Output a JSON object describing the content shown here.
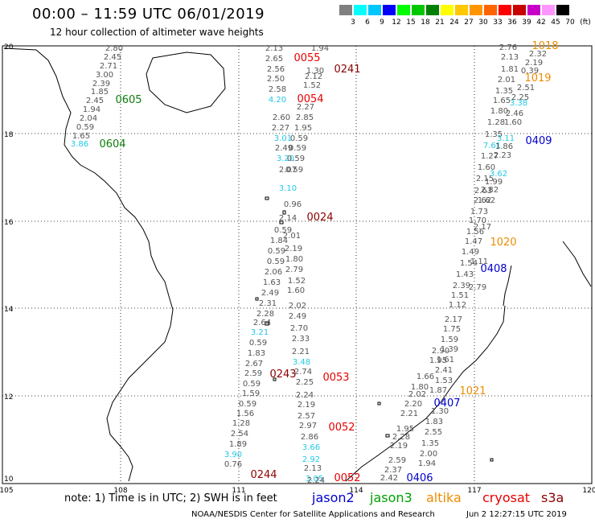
{
  "header": {
    "title": "00:00 – 11:59 UTC 06/01/2019",
    "subtitle": "12 hour collection of altimeter wave heights"
  },
  "scale": {
    "labels": [
      "3",
      "6",
      "9",
      "12",
      "15",
      "18",
      "21",
      "24",
      "27",
      "30",
      "33",
      "36",
      "39",
      "42",
      "45",
      "70",
      "(ft)"
    ],
    "colors": [
      "#808080",
      "#00ffff",
      "#00c8ff",
      "#0000ff",
      "#00ff00",
      "#00c800",
      "#008000",
      "#ffff00",
      "#ffc800",
      "#ff9600",
      "#ff6400",
      "#ff0000",
      "#c80000",
      "#c800c8",
      "#ff96ff",
      "#000000"
    ]
  },
  "axes": {
    "lon": [
      "105",
      "108",
      "111",
      "114",
      "117",
      "120"
    ],
    "lat": [
      "20",
      "18",
      "16",
      "14",
      "12",
      "10"
    ]
  },
  "colors": {
    "gray": "#555555",
    "cyan": "#22c8e6",
    "green": "#0b7d0b",
    "red": "#e60000",
    "darkred": "#8b0000",
    "blue": "#0000cd",
    "orange": "#ee8c00"
  },
  "passes": [
    {
      "color": "darkred",
      "text": "0241"
    },
    {
      "color": "red",
      "text": "0055"
    },
    {
      "color": "red",
      "text": "0054"
    },
    {
      "color": "green",
      "text": "0605"
    },
    {
      "color": "green",
      "text": "0604"
    },
    {
      "color": "darkred",
      "text": "0024"
    },
    {
      "color": "red",
      "text": "0053"
    },
    {
      "color": "darkred",
      "text": "0243"
    },
    {
      "color": "red",
      "text": "0052"
    },
    {
      "color": "darkred",
      "text": "0244"
    },
    {
      "color": "red",
      "text": "0052"
    },
    {
      "color": "blue",
      "text": "0406"
    },
    {
      "color": "blue",
      "text": "0407"
    },
    {
      "color": "orange",
      "text": "1021"
    },
    {
      "color": "blue",
      "text": "0408"
    },
    {
      "color": "orange",
      "text": "1020"
    },
    {
      "color": "blue",
      "text": "0409"
    },
    {
      "color": "orange",
      "text": "1019"
    },
    {
      "color": "orange",
      "text": "1018"
    }
  ],
  "track_values": [
    {
      "color": "gray",
      "text": "2.80"
    },
    {
      "color": "gray",
      "text": "2.45"
    },
    {
      "color": "gray",
      "text": "2.71"
    },
    {
      "color": "gray",
      "text": "3.00"
    },
    {
      "color": "gray",
      "text": "2.39"
    },
    {
      "color": "gray",
      "text": "1.85"
    },
    {
      "color": "gray",
      "text": "2.45"
    },
    {
      "color": "gray",
      "text": "1.94"
    },
    {
      "color": "gray",
      "text": "2.04"
    },
    {
      "color": "gray",
      "text": "0.59"
    },
    {
      "color": "gray",
      "text": "1.65"
    },
    {
      "color": "cyan",
      "text": "3.86"
    },
    {
      "color": "gray",
      "text": "2.13"
    },
    {
      "color": "gray",
      "text": "2.65"
    },
    {
      "color": "gray",
      "text": "2.56"
    },
    {
      "color": "gray",
      "text": "2.50"
    },
    {
      "color": "gray",
      "text": "2.58"
    },
    {
      "color": "cyan",
      "text": "4.20"
    },
    {
      "color": "gray",
      "text": "1.94"
    },
    {
      "color": "gray",
      "text": "1.30"
    },
    {
      "color": "gray",
      "text": "2.12"
    },
    {
      "color": "gray",
      "text": "1.52"
    },
    {
      "color": "gray",
      "text": "2.27"
    },
    {
      "color": "gray",
      "text": "2.60"
    },
    {
      "color": "gray",
      "text": "2.85"
    },
    {
      "color": "gray",
      "text": "2.27"
    },
    {
      "color": "gray",
      "text": "1.95"
    },
    {
      "color": "cyan",
      "text": "3.01"
    },
    {
      "color": "gray",
      "text": "0.59"
    },
    {
      "color": "gray",
      "text": "2.49"
    },
    {
      "color": "gray",
      "text": "0.59"
    },
    {
      "color": "cyan",
      "text": "3.20"
    },
    {
      "color": "gray",
      "text": "0.59"
    },
    {
      "color": "gray",
      "text": "2.07"
    },
    {
      "color": "gray",
      "text": "0.59"
    },
    {
      "color": "cyan",
      "text": "3.10"
    },
    {
      "color": "gray",
      "text": "0.96"
    },
    {
      "color": "gray",
      "text": "2.14"
    },
    {
      "color": "gray",
      "text": "0.59"
    },
    {
      "color": "gray",
      "text": "2.01"
    },
    {
      "color": "gray",
      "text": "1.84"
    },
    {
      "color": "gray",
      "text": "2.19"
    },
    {
      "color": "gray",
      "text": "0.59"
    },
    {
      "color": "gray",
      "text": "1.80"
    },
    {
      "color": "gray",
      "text": "0.59"
    },
    {
      "color": "gray",
      "text": "2.79"
    },
    {
      "color": "gray",
      "text": "2.06"
    },
    {
      "color": "gray",
      "text": "1.52"
    },
    {
      "color": "gray",
      "text": "1.63"
    },
    {
      "color": "gray",
      "text": "1.60"
    },
    {
      "color": "gray",
      "text": "2.49"
    },
    {
      "color": "gray",
      "text": "2.02"
    },
    {
      "color": "gray",
      "text": "2.31"
    },
    {
      "color": "gray",
      "text": "2.49"
    },
    {
      "color": "gray",
      "text": "2.28"
    },
    {
      "color": "gray",
      "text": "2.70"
    },
    {
      "color": "gray",
      "text": "2.64"
    },
    {
      "color": "gray",
      "text": "2.33"
    },
    {
      "color": "cyan",
      "text": "3.21"
    },
    {
      "color": "gray",
      "text": "2.21"
    },
    {
      "color": "gray",
      "text": "0.59"
    },
    {
      "color": "cyan",
      "text": "3.48"
    },
    {
      "color": "gray",
      "text": "1.83"
    },
    {
      "color": "gray",
      "text": "2.74"
    },
    {
      "color": "gray",
      "text": "2.67"
    },
    {
      "color": "gray",
      "text": "2.25"
    },
    {
      "color": "gray",
      "text": "2.59"
    },
    {
      "color": "gray",
      "text": "2.24"
    },
    {
      "color": "gray",
      "text": "0.59"
    },
    {
      "color": "gray",
      "text": "2.19"
    },
    {
      "color": "gray",
      "text": "1.59"
    },
    {
      "color": "gray",
      "text": "2.57"
    },
    {
      "color": "gray",
      "text": "0.59"
    },
    {
      "color": "gray",
      "text": "2.97"
    },
    {
      "color": "gray",
      "text": "1.56"
    },
    {
      "color": "gray",
      "text": "2.86"
    },
    {
      "color": "gray",
      "text": "1.28"
    },
    {
      "color": "cyan",
      "text": "3.66"
    },
    {
      "color": "gray",
      "text": "2.54"
    },
    {
      "color": "cyan",
      "text": "2.92"
    },
    {
      "color": "gray",
      "text": "1.89"
    },
    {
      "color": "gray",
      "text": "2.13"
    },
    {
      "color": "cyan",
      "text": "3.90"
    },
    {
      "color": "cyan",
      "text": "3.05"
    },
    {
      "color": "gray",
      "text": "0.76"
    },
    {
      "color": "gray",
      "text": "2.24"
    },
    {
      "color": "gray",
      "text": "2.76"
    },
    {
      "color": "gray",
      "text": "2.13"
    },
    {
      "color": "gray",
      "text": "1.81"
    },
    {
      "color": "gray",
      "text": "2.01"
    },
    {
      "color": "gray",
      "text": "1.35"
    },
    {
      "color": "gray",
      "text": "1.65"
    },
    {
      "color": "gray",
      "text": "1.80"
    },
    {
      "color": "gray",
      "text": "1.28"
    },
    {
      "color": "gray",
      "text": "1.35"
    },
    {
      "color": "cyan",
      "text": "7.61"
    },
    {
      "color": "gray",
      "text": "1.27"
    },
    {
      "color": "gray",
      "text": "1.60"
    },
    {
      "color": "gray",
      "text": "2.15"
    },
    {
      "color": "gray",
      "text": "2.63"
    },
    {
      "color": "gray",
      "text": "2.62"
    },
    {
      "color": "gray",
      "text": "1.73"
    },
    {
      "color": "gray",
      "text": "1.70"
    },
    {
      "color": "gray",
      "text": "1.56"
    },
    {
      "color": "gray",
      "text": "1.47"
    },
    {
      "color": "gray",
      "text": "1.49"
    },
    {
      "color": "gray",
      "text": "1.54"
    },
    {
      "color": "gray",
      "text": "1.43"
    },
    {
      "color": "gray",
      "text": "2.39"
    },
    {
      "color": "gray",
      "text": "1.51"
    },
    {
      "color": "gray",
      "text": "1.12"
    },
    {
      "color": "gray",
      "text": "2.17"
    },
    {
      "color": "gray",
      "text": "1.75"
    },
    {
      "color": "gray",
      "text": "1.59"
    },
    {
      "color": "gray",
      "text": "2.90"
    },
    {
      "color": "gray",
      "text": "1.39"
    },
    {
      "color": "gray",
      "text": "1.95"
    },
    {
      "color": "gray",
      "text": "1.61"
    },
    {
      "color": "gray",
      "text": "2.41"
    },
    {
      "color": "gray",
      "text": "1.66"
    },
    {
      "color": "gray",
      "text": "1.53"
    },
    {
      "color": "gray",
      "text": "1.80"
    },
    {
      "color": "gray",
      "text": "1.87"
    },
    {
      "color": "gray",
      "text": "2.02"
    },
    {
      "color": "gray",
      "text": "2.20"
    },
    {
      "color": "gray",
      "text": "1.30"
    },
    {
      "color": "gray",
      "text": "2.21"
    },
    {
      "color": "gray",
      "text": "1.83"
    },
    {
      "color": "gray",
      "text": "1.95"
    },
    {
      "color": "gray",
      "text": "2.55"
    },
    {
      "color": "gray",
      "text": "2.28"
    },
    {
      "color": "gray",
      "text": "1.35"
    },
    {
      "color": "gray",
      "text": "2.19"
    },
    {
      "color": "gray",
      "text": "2.00"
    },
    {
      "color": "gray",
      "text": "2.59"
    },
    {
      "color": "gray",
      "text": "1.94"
    },
    {
      "color": "gray",
      "text": "2.37"
    },
    {
      "color": "gray",
      "text": "2.42"
    },
    {
      "color": "gray",
      "text": "2.32"
    },
    {
      "color": "gray",
      "text": "2.19"
    },
    {
      "color": "gray",
      "text": "0.39"
    },
    {
      "color": "gray",
      "text": "2.51"
    },
    {
      "color": "gray",
      "text": "2.25"
    },
    {
      "color": "cyan",
      "text": "3.38"
    },
    {
      "color": "gray",
      "text": "2.46"
    },
    {
      "color": "gray",
      "text": "1.60"
    },
    {
      "color": "cyan",
      "text": "3.11"
    },
    {
      "color": "gray",
      "text": "1.86"
    },
    {
      "color": "gray",
      "text": "2.23"
    },
    {
      "color": "cyan",
      "text": "3.62"
    },
    {
      "color": "gray",
      "text": "1.99"
    },
    {
      "color": "gray",
      "text": "2.82"
    },
    {
      "color": "gray",
      "text": "1.62"
    },
    {
      "color": "gray",
      "text": "2.17"
    },
    {
      "color": "gray",
      "text": "1.11"
    },
    {
      "color": "gray",
      "text": "2.79"
    },
    {
      "color": "gray",
      "text": "1.97"
    },
    {
      "color": "cyan",
      "text": "3.14"
    },
    {
      "color": "gray",
      "text": "1.60"
    },
    {
      "color": "gray",
      "text": "2.17"
    },
    {
      "color": "gray",
      "text": "1.28"
    },
    {
      "color": "gray",
      "text": "1.59"
    }
  ],
  "footer": {
    "note": "note:  1) Time is in UTC;  2) SWH is in feet",
    "missions": [
      {
        "text": "jason2",
        "color": "#0000cd"
      },
      {
        "text": "jason3",
        "color": "#00a000"
      },
      {
        "text": "altika",
        "color": "#ee8c00"
      },
      {
        "text": "cryosat",
        "color": "#e60000"
      },
      {
        "text": "s3a",
        "color": "#8b0000"
      }
    ],
    "credit": "NOAA/NESDIS Center for Satellite Applications and Research",
    "timestamp": "Jun  2 12:27:15 UTC 2019"
  }
}
